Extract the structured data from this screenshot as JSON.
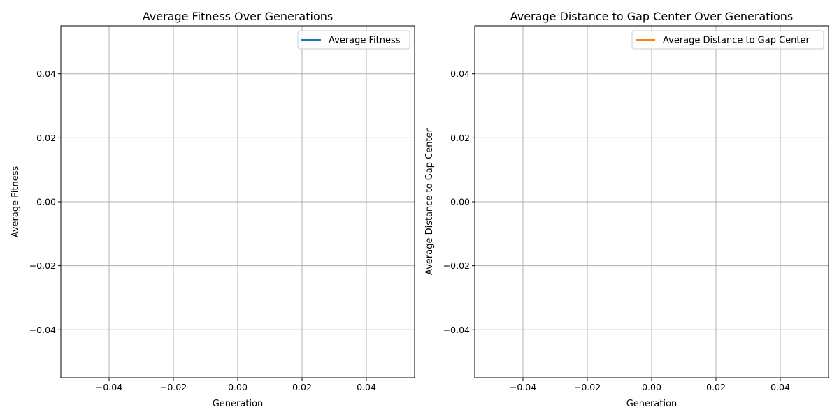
{
  "chart_data": [
    {
      "type": "line",
      "title": "Average Fitness Over Generations",
      "xlabel": "Generation",
      "ylabel": "Average Fitness",
      "xlim": [
        -0.055,
        0.055
      ],
      "ylim": [
        -0.055,
        0.055
      ],
      "xticks": [
        -0.04,
        -0.02,
        0.0,
        0.02,
        0.04
      ],
      "yticks": [
        -0.04,
        -0.02,
        0.0,
        0.02,
        0.04
      ],
      "xtick_labels": [
        "−0.04",
        "−0.02",
        "0.00",
        "0.02",
        "0.04"
      ],
      "ytick_labels": [
        "−0.04",
        "−0.02",
        "0.00",
        "0.02",
        "0.04"
      ],
      "grid": true,
      "legend_position": "top-right",
      "series": [
        {
          "name": "Average Fitness",
          "color": "#1f77b4",
          "x": [],
          "y": []
        }
      ]
    },
    {
      "type": "line",
      "title": "Average Distance to Gap Center Over Generations",
      "xlabel": "Generation",
      "ylabel": "Average Distance to Gap Center",
      "xlim": [
        -0.055,
        0.055
      ],
      "ylim": [
        -0.055,
        0.055
      ],
      "xticks": [
        -0.04,
        -0.02,
        0.0,
        0.02,
        0.04
      ],
      "yticks": [
        -0.04,
        -0.02,
        0.0,
        0.02,
        0.04
      ],
      "xtick_labels": [
        "−0.04",
        "−0.02",
        "0.00",
        "0.02",
        "0.04"
      ],
      "ytick_labels": [
        "−0.04",
        "−0.02",
        "0.00",
        "0.02",
        "0.04"
      ],
      "grid": true,
      "legend_position": "top-right",
      "series": [
        {
          "name": "Average Distance to Gap Center",
          "color": "#ff7f0e",
          "x": [],
          "y": []
        }
      ]
    }
  ]
}
